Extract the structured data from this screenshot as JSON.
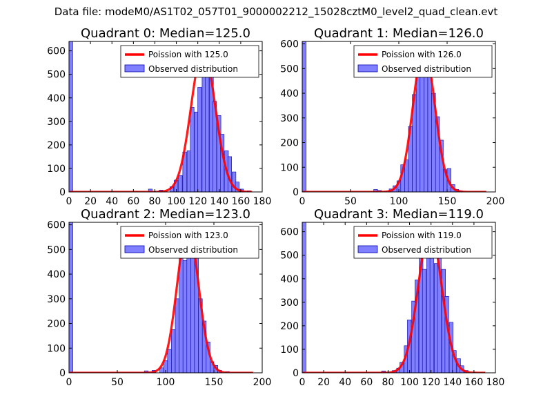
{
  "figure": {
    "suptitle": "Data file: modeM0/AS1T02_057T01_9000002212_15028cztM0_level2_quad_clean.evt"
  },
  "colors": {
    "curve": "#ff0000",
    "bar_fill": "#7f7fff",
    "bar_edge": "#0000aa"
  },
  "chart_data": [
    {
      "type": "bar",
      "title": "Quadrant 0: Median=125.0",
      "xlim": [
        0,
        180
      ],
      "ylim": [
        0,
        640
      ],
      "xticks": [
        0,
        20,
        40,
        60,
        80,
        100,
        120,
        140,
        160,
        180
      ],
      "yticks": [
        0,
        100,
        200,
        300,
        400,
        500,
        600
      ],
      "legend": {
        "position": "top-right",
        "curve_label": "Poission with 125.0",
        "hist_label": "Observed distribution"
      },
      "poisson_mean": 125.0,
      "poisson_peak": 605,
      "bin_width": 3.5,
      "bins": [
        {
          "x": 0,
          "v": 640
        },
        {
          "x": 74,
          "v": 12
        },
        {
          "x": 84,
          "v": 8
        },
        {
          "x": 94,
          "v": 22
        },
        {
          "x": 98,
          "v": 50
        },
        {
          "x": 102,
          "v": 70
        },
        {
          "x": 106,
          "v": 170
        },
        {
          "x": 110,
          "v": 175
        },
        {
          "x": 113,
          "v": 360
        },
        {
          "x": 117,
          "v": 340
        },
        {
          "x": 120,
          "v": 445
        },
        {
          "x": 124,
          "v": 560
        },
        {
          "x": 127,
          "v": 600
        },
        {
          "x": 131,
          "v": 490
        },
        {
          "x": 134,
          "v": 385
        },
        {
          "x": 138,
          "v": 325
        },
        {
          "x": 141,
          "v": 245
        },
        {
          "x": 145,
          "v": 175
        },
        {
          "x": 148,
          "v": 150
        },
        {
          "x": 152,
          "v": 85
        },
        {
          "x": 155,
          "v": 42
        },
        {
          "x": 159,
          "v": 12
        },
        {
          "x": 166,
          "v": 5
        }
      ]
    },
    {
      "type": "bar",
      "title": "Quadrant 1: Median=126.0",
      "xlim": [
        0,
        200
      ],
      "ylim": [
        0,
        610
      ],
      "xticks": [
        0,
        50,
        100,
        150,
        200
      ],
      "yticks": [
        0,
        100,
        200,
        300,
        400,
        500,
        600
      ],
      "legend": {
        "position": "top-right",
        "curve_label": "Poission with 126.0",
        "hist_label": "Observed distribution"
      },
      "poisson_mean": 126.0,
      "poisson_peak": 585,
      "bin_width": 4.0,
      "bins": [
        {
          "x": 0,
          "v": 610
        },
        {
          "x": 74,
          "v": 10
        },
        {
          "x": 78,
          "v": 6
        },
        {
          "x": 90,
          "v": 12
        },
        {
          "x": 94,
          "v": 25
        },
        {
          "x": 98,
          "v": 45
        },
        {
          "x": 102,
          "v": 110
        },
        {
          "x": 106,
          "v": 130
        },
        {
          "x": 110,
          "v": 265
        },
        {
          "x": 114,
          "v": 395
        },
        {
          "x": 118,
          "v": 475
        },
        {
          "x": 122,
          "v": 525
        },
        {
          "x": 126,
          "v": 575
        },
        {
          "x": 130,
          "v": 470
        },
        {
          "x": 134,
          "v": 400
        },
        {
          "x": 138,
          "v": 305
        },
        {
          "x": 142,
          "v": 210
        },
        {
          "x": 146,
          "v": 90
        },
        {
          "x": 150,
          "v": 95
        },
        {
          "x": 154,
          "v": 30
        },
        {
          "x": 158,
          "v": 10
        },
        {
          "x": 162,
          "v": 5
        }
      ]
    },
    {
      "type": "bar",
      "title": "Quadrant 2: Median=123.0",
      "xlim": [
        0,
        200
      ],
      "ylim": [
        0,
        610
      ],
      "xticks": [
        0,
        50,
        100,
        150,
        200
      ],
      "yticks": [
        0,
        100,
        200,
        300,
        400,
        500,
        600
      ],
      "legend": {
        "position": "top-right",
        "curve_label": "Poission with 123.0",
        "hist_label": "Observed distribution"
      },
      "poisson_mean": 123.0,
      "poisson_peak": 590,
      "bin_width": 4.0,
      "bins": [
        {
          "x": 0,
          "v": 610
        },
        {
          "x": 78,
          "v": 8
        },
        {
          "x": 86,
          "v": 10
        },
        {
          "x": 94,
          "v": 20
        },
        {
          "x": 98,
          "v": 50
        },
        {
          "x": 102,
          "v": 95
        },
        {
          "x": 106,
          "v": 175
        },
        {
          "x": 110,
          "v": 300
        },
        {
          "x": 114,
          "v": 465
        },
        {
          "x": 118,
          "v": 455
        },
        {
          "x": 122,
          "v": 560
        },
        {
          "x": 126,
          "v": 470
        },
        {
          "x": 130,
          "v": 505
        },
        {
          "x": 134,
          "v": 300
        },
        {
          "x": 138,
          "v": 210
        },
        {
          "x": 142,
          "v": 125
        },
        {
          "x": 146,
          "v": 45
        },
        {
          "x": 150,
          "v": 30
        },
        {
          "x": 154,
          "v": 10
        },
        {
          "x": 162,
          "v": 5
        }
      ]
    },
    {
      "type": "bar",
      "title": "Quadrant 3: Median=119.0",
      "xlim": [
        0,
        180
      ],
      "ylim": [
        0,
        640
      ],
      "xticks": [
        0,
        20,
        40,
        60,
        80,
        100,
        120,
        140,
        160,
        180
      ],
      "yticks": [
        0,
        100,
        200,
        300,
        400,
        500,
        600
      ],
      "legend": {
        "position": "top-right",
        "curve_label": "Poission with 119.0",
        "hist_label": "Observed distribution"
      },
      "poisson_mean": 119.0,
      "poisson_peak": 610,
      "bin_width": 3.5,
      "bins": [
        {
          "x": 0,
          "v": 640
        },
        {
          "x": 74,
          "v": 8
        },
        {
          "x": 84,
          "v": 10
        },
        {
          "x": 88,
          "v": 20
        },
        {
          "x": 91,
          "v": 45
        },
        {
          "x": 95,
          "v": 115
        },
        {
          "x": 98,
          "v": 225
        },
        {
          "x": 102,
          "v": 305
        },
        {
          "x": 105,
          "v": 395
        },
        {
          "x": 109,
          "v": 490
        },
        {
          "x": 112,
          "v": 440
        },
        {
          "x": 116,
          "v": 580
        },
        {
          "x": 119,
          "v": 565
        },
        {
          "x": 123,
          "v": 465
        },
        {
          "x": 126,
          "v": 580
        },
        {
          "x": 130,
          "v": 440
        },
        {
          "x": 133,
          "v": 325
        },
        {
          "x": 137,
          "v": 215
        },
        {
          "x": 140,
          "v": 95
        },
        {
          "x": 144,
          "v": 60
        },
        {
          "x": 147,
          "v": 30
        },
        {
          "x": 151,
          "v": 10
        }
      ]
    }
  ]
}
